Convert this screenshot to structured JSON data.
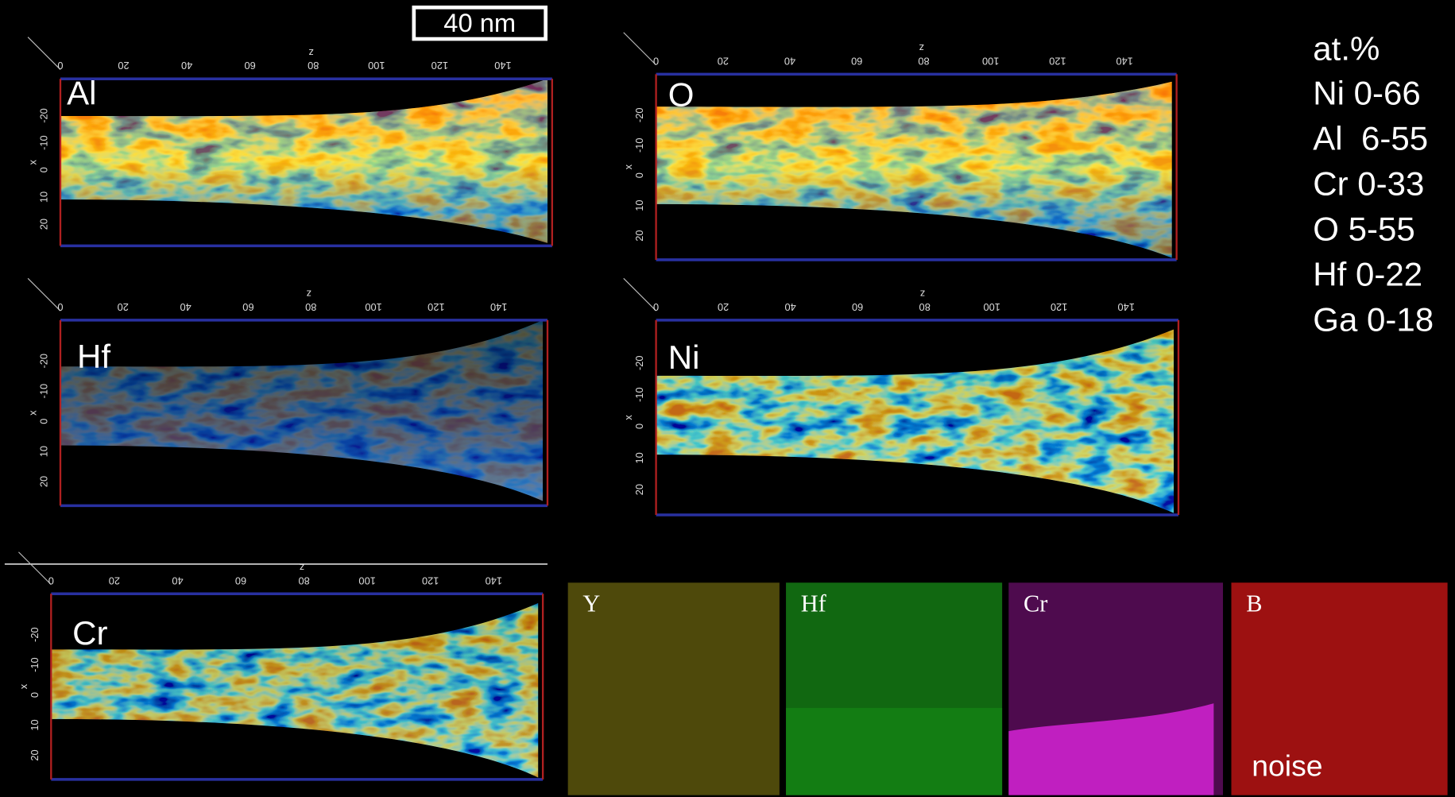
{
  "scale_bar": "40 nm",
  "axes": {
    "z_label": "z",
    "x_label": "x",
    "z_ticks": [
      0,
      20,
      40,
      60,
      80,
      100,
      120,
      140
    ],
    "x_ticks": [
      -20,
      -10,
      0,
      10,
      20
    ]
  },
  "panels": [
    {
      "label": "Al"
    },
    {
      "label": "O"
    },
    {
      "label": "Hf"
    },
    {
      "label": "Ni"
    },
    {
      "label": "Cr"
    }
  ],
  "legend": {
    "title": "at.%",
    "items": [
      "Ni 0-66",
      "Al  6-55",
      "Cr 0-33",
      "O 5-55",
      "Hf 0-22",
      "Ga 0-18"
    ]
  },
  "eds_maps": [
    {
      "label": "Y"
    },
    {
      "label": "Hf"
    },
    {
      "label": "Cr"
    },
    {
      "label": "B",
      "note": "noise"
    }
  ]
}
